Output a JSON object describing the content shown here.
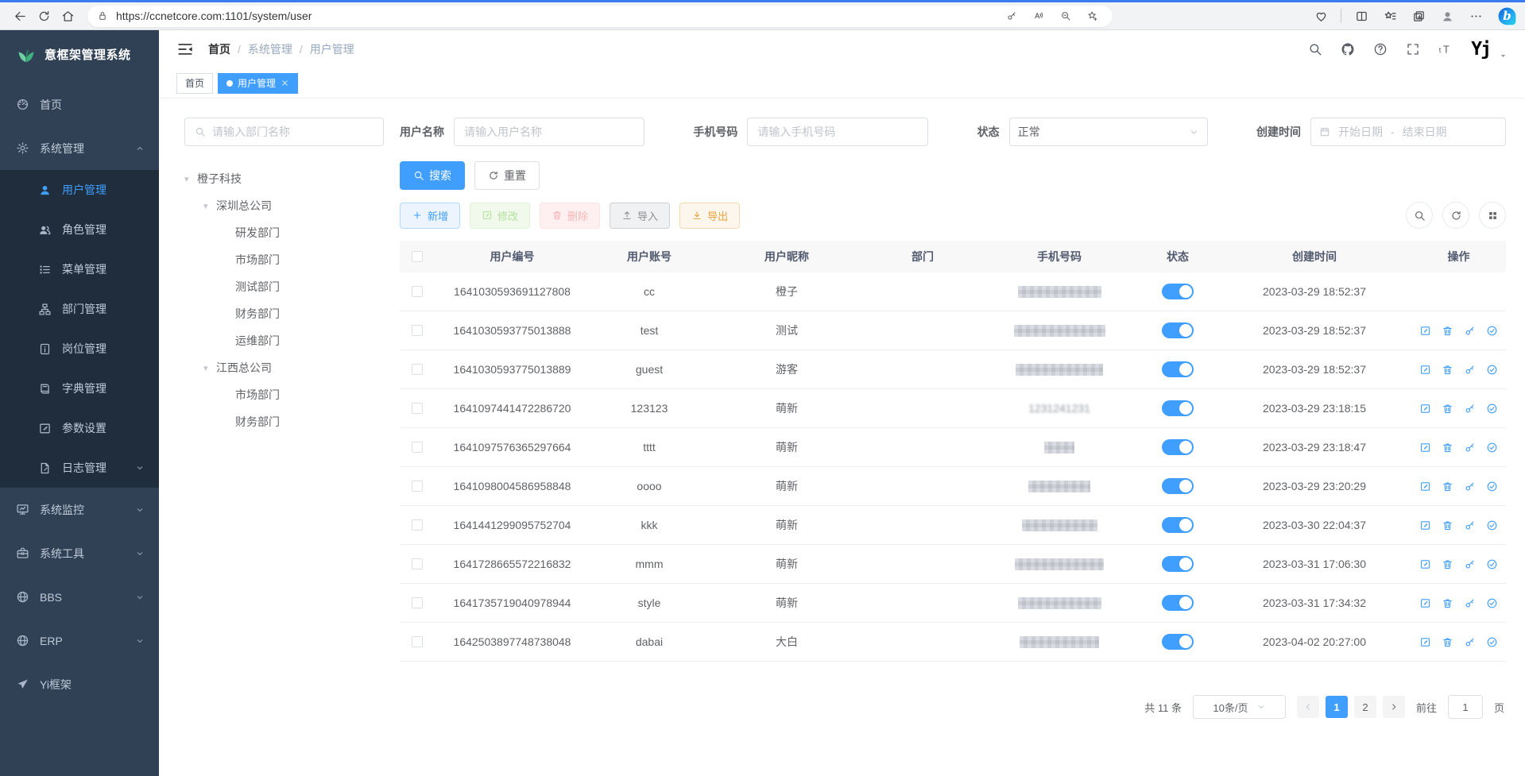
{
  "browser": {
    "url": "https://ccnetcore.com:1101/system/user"
  },
  "app_title": "意框架管理系统",
  "header": {
    "breadcrumb": [
      "首页",
      "系统管理",
      "用户管理"
    ],
    "logo_text": "Yj"
  },
  "tabs": [
    {
      "label": "首页",
      "active": false,
      "closable": false
    },
    {
      "label": "用户管理",
      "active": true,
      "closable": true
    }
  ],
  "sidebar": [
    {
      "label": "首页",
      "icon": "dashboard-icon",
      "level": 1
    },
    {
      "label": "系统管理",
      "icon": "gear-icon",
      "level": 1,
      "chevron": "up"
    },
    {
      "label": "用户管理",
      "icon": "user-icon",
      "level": 2,
      "active": true
    },
    {
      "label": "角色管理",
      "icon": "users-icon",
      "level": 2
    },
    {
      "label": "菜单管理",
      "icon": "menu-list-icon",
      "level": 2
    },
    {
      "label": "部门管理",
      "icon": "org-tree-icon",
      "level": 2
    },
    {
      "label": "岗位管理",
      "icon": "badge-icon",
      "level": 2
    },
    {
      "label": "字典管理",
      "icon": "book-icon",
      "level": 2
    },
    {
      "label": "参数设置",
      "icon": "edit-square-icon",
      "level": 2
    },
    {
      "label": "日志管理",
      "icon": "log-icon",
      "level": 2,
      "chevron": "down"
    },
    {
      "label": "系统监控",
      "icon": "monitor-icon",
      "level": 1,
      "chevron": "down"
    },
    {
      "label": "系统工具",
      "icon": "toolbox-icon",
      "level": 1,
      "chevron": "down"
    },
    {
      "label": "BBS",
      "icon": "globe-icon",
      "level": 1,
      "chevron": "down"
    },
    {
      "label": "ERP",
      "icon": "globe-icon",
      "level": 1,
      "chevron": "down"
    },
    {
      "label": "Yi框架",
      "icon": "paper-plane-icon",
      "level": 1
    }
  ],
  "dept": {
    "search_placeholder": "请输入部门名称",
    "tree": [
      {
        "label": "橙子科技",
        "level": 0,
        "caret": true
      },
      {
        "label": "深圳总公司",
        "level": 1,
        "caret": true
      },
      {
        "label": "研发部门",
        "level": 2
      },
      {
        "label": "市场部门",
        "level": 2
      },
      {
        "label": "测试部门",
        "level": 2
      },
      {
        "label": "财务部门",
        "level": 2
      },
      {
        "label": "运维部门",
        "level": 2
      },
      {
        "label": "江西总公司",
        "level": 1,
        "caret": true
      },
      {
        "label": "市场部门",
        "level": 2
      },
      {
        "label": "财务部门",
        "level": 2
      }
    ]
  },
  "filters": {
    "username": {
      "label": "用户名称",
      "placeholder": "请输入用户名称"
    },
    "phone": {
      "label": "手机号码",
      "placeholder": "请输入手机号码"
    },
    "status": {
      "label": "状态",
      "value": "正常"
    },
    "created": {
      "label": "创建时间",
      "start_placeholder": "开始日期",
      "separator": "-",
      "end_placeholder": "结束日期"
    }
  },
  "buttons": {
    "search": "搜索",
    "reset": "重置",
    "add": "新增",
    "modify": "修改",
    "delete": "删除",
    "import": "导入",
    "export": "导出"
  },
  "table": {
    "columns": [
      "用户编号",
      "用户账号",
      "用户昵称",
      "部门",
      "手机号码",
      "状态",
      "创建时间",
      "操作"
    ],
    "rows": [
      {
        "id": "1641030593691127808",
        "account": "cc",
        "nickname": "橙子",
        "dept": "",
        "phone_visible": "",
        "phone_blur_width": 105,
        "status_on": true,
        "created": "2023-03-29 18:52:37",
        "has_actions": false
      },
      {
        "id": "1641030593775013888",
        "account": "test",
        "nickname": "测试",
        "dept": "",
        "phone_visible": "",
        "phone_blur_width": 115,
        "status_on": true,
        "created": "2023-03-29 18:52:37",
        "has_actions": true
      },
      {
        "id": "1641030593775013889",
        "account": "guest",
        "nickname": "游客",
        "dept": "",
        "phone_visible": "",
        "phone_blur_width": 110,
        "status_on": true,
        "created": "2023-03-29 18:52:37",
        "has_actions": true
      },
      {
        "id": "1641097441472286720",
        "account": "123123",
        "nickname": "萌新",
        "dept": "",
        "phone_visible": "1231241231",
        "phone_blur_width": 100,
        "status_on": true,
        "created": "2023-03-29 23:18:15",
        "has_actions": true
      },
      {
        "id": "1641097576365297664",
        "account": "tttt",
        "nickname": "萌新",
        "dept": "",
        "phone_visible": "",
        "phone_blur_width": 38,
        "status_on": true,
        "created": "2023-03-29 23:18:47",
        "has_actions": true
      },
      {
        "id": "1641098004586958848",
        "account": "oooo",
        "nickname": "萌新",
        "dept": "",
        "phone_visible": "",
        "phone_blur_width": 78,
        "status_on": true,
        "created": "2023-03-29 23:20:29",
        "has_actions": true
      },
      {
        "id": "1641441299095752704",
        "account": "kkk",
        "nickname": "萌新",
        "dept": "",
        "phone_visible": "",
        "phone_blur_width": 95,
        "status_on": true,
        "created": "2023-03-30 22:04:37",
        "has_actions": true
      },
      {
        "id": "1641728665572216832",
        "account": "mmm",
        "nickname": "萌新",
        "dept": "",
        "phone_visible": "",
        "phone_blur_width": 112,
        "status_on": true,
        "created": "2023-03-31 17:06:30",
        "has_actions": true
      },
      {
        "id": "1641735719040978944",
        "account": "style",
        "nickname": "萌新",
        "dept": "",
        "phone_visible": "",
        "phone_blur_width": 105,
        "status_on": true,
        "created": "2023-03-31 17:34:32",
        "has_actions": true
      },
      {
        "id": "1642503897748738048",
        "account": "dabai",
        "nickname": "大白",
        "dept": "",
        "phone_visible": "",
        "phone_blur_width": 100,
        "status_on": true,
        "created": "2023-04-02 20:27:00",
        "has_actions": true
      }
    ]
  },
  "pagination": {
    "total_label": "共 11 条",
    "page_size": "10条/页",
    "pages": [
      "1",
      "2"
    ],
    "active_page": "1",
    "goto_label": "前往",
    "goto_value": "1",
    "page_label": "页"
  },
  "colors": {
    "primary": "#409eff",
    "sidebar_bg": "#304156",
    "submenu_bg": "#1f2d3d",
    "tab_active": "#409eff",
    "toggle_on": "#409eff",
    "success": "#67c23a",
    "danger": "#f56c6c",
    "warning": "#e6a23c"
  }
}
